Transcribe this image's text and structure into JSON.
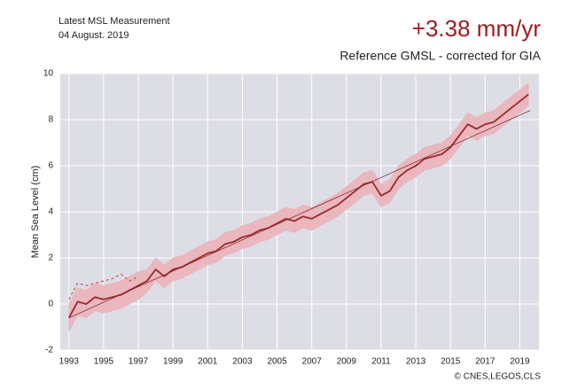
{
  "chart_data": {
    "type": "line",
    "annotations": [
      "Latest MSL Measurement",
      "04 August. 2019"
    ],
    "title": "+3.38 mm/yr",
    "subtitle": "Reference GMSL - corrected for GIA",
    "ylabel": "Mean Sea Level (cm)",
    "credit": "© CNES,LEGOS,CLS",
    "xlim": [
      1992.5,
      2020.1
    ],
    "ylim": [
      -2,
      10
    ],
    "xticks": [
      1993,
      1995,
      1997,
      1999,
      2001,
      2003,
      2005,
      2007,
      2009,
      2011,
      2013,
      2015,
      2017,
      2019
    ],
    "yticks": [
      -2,
      0,
      2,
      4,
      6,
      8,
      10
    ],
    "grid": true,
    "series": [
      {
        "color": "#9b2a2e",
        "band_color": "#e9b7bd",
        "style": "solid",
        "x": [
          1993,
          1993.5,
          1994,
          1994.5,
          1995,
          1995.5,
          1996,
          1996.5,
          1997,
          1997.5,
          1998,
          1998.5,
          1999,
          1999.5,
          2000,
          2000.5,
          2001,
          2001.5,
          2002,
          2002.5,
          2003,
          2003.5,
          2004,
          2004.5,
          2005,
          2005.5,
          2006,
          2006.5,
          2007,
          2007.5,
          2008,
          2008.5,
          2009,
          2009.5,
          2010,
          2010.5,
          2011,
          2011.5,
          2012,
          2012.5,
          2013,
          2013.5,
          2014,
          2014.5,
          2015,
          2015.5,
          2016,
          2016.5,
          2017,
          2017.5,
          2018,
          2018.5,
          2019,
          2019.5
        ],
        "values": [
          -0.6,
          0.1,
          0.0,
          0.3,
          0.2,
          0.3,
          0.4,
          0.6,
          0.8,
          1.0,
          1.5,
          1.2,
          1.5,
          1.6,
          1.8,
          2.0,
          2.2,
          2.3,
          2.6,
          2.7,
          2.9,
          3.0,
          3.2,
          3.3,
          3.5,
          3.7,
          3.6,
          3.8,
          3.7,
          3.9,
          4.1,
          4.3,
          4.6,
          4.9,
          5.2,
          5.3,
          4.7,
          4.9,
          5.5,
          5.8,
          6.0,
          6.3,
          6.4,
          6.5,
          6.8,
          7.3,
          7.8,
          7.6,
          7.8,
          7.9,
          8.2,
          8.5,
          8.8,
          9.1
        ],
        "errors": [
          0.6,
          0.6,
          0.6,
          0.6,
          0.6,
          0.6,
          0.6,
          0.6,
          0.6,
          0.5,
          0.5,
          0.5,
          0.5,
          0.5,
          0.5,
          0.5,
          0.5,
          0.5,
          0.5,
          0.5,
          0.5,
          0.5,
          0.5,
          0.5,
          0.5,
          0.5,
          0.5,
          0.5,
          0.5,
          0.5,
          0.5,
          0.5,
          0.5,
          0.5,
          0.5,
          0.5,
          0.5,
          0.5,
          0.5,
          0.5,
          0.5,
          0.5,
          0.5,
          0.5,
          0.5,
          0.5,
          0.5,
          0.5,
          0.5,
          0.5,
          0.5,
          0.5,
          0.5,
          0.5
        ]
      },
      {
        "color": "#c0565a",
        "style": "dashed",
        "x": [
          1993,
          1993.5,
          1994,
          1994.5,
          1995,
          1995.5,
          1996,
          1996.5,
          1997
        ],
        "values": [
          0.2,
          0.9,
          0.8,
          0.9,
          1.0,
          1.1,
          1.3,
          1.0,
          1.2
        ]
      },
      {
        "color": "#7a1e22",
        "style": "thin",
        "x": [
          1993,
          2019.6
        ],
        "values": [
          -0.6,
          8.4
        ]
      }
    ]
  }
}
